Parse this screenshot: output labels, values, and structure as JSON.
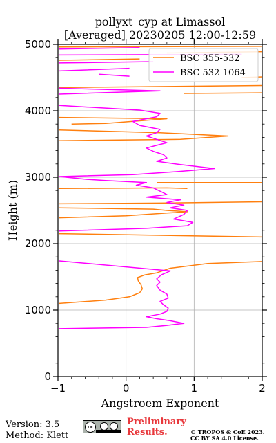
{
  "title_line1": "pollyxt_cyp at Limassol",
  "title_line2": "[Averaged] 20230205 12:00-12:59",
  "footer": {
    "version": "Version: 3.5",
    "method": "Method: Klett",
    "preliminary": "Preliminary",
    "results": "Results.",
    "credit_line1": "© TROPOS & CoE 2023.",
    "credit_line2": "CC BY SA 4.0 License.",
    "license_badge": "cc"
  },
  "chart_data": {
    "type": "line",
    "xlabel": "Angstroem Exponent",
    "ylabel": "Height (m)",
    "xlim": [
      -1,
      2
    ],
    "ylim": [
      0,
      5000
    ],
    "xticks": [
      -1,
      0,
      1,
      2
    ],
    "yticks": [
      0,
      1000,
      2000,
      3000,
      4000,
      5000
    ],
    "grid": true,
    "legend_position": "top-right",
    "series": [
      {
        "name": "BSC 355-532",
        "color": "#ff7f0e",
        "points": [
          [
            -0.98,
            1100
          ],
          [
            -0.3,
            1150
          ],
          [
            0.05,
            1200
          ],
          [
            0.2,
            1260
          ],
          [
            0.24,
            1320
          ],
          [
            0.22,
            1380
          ],
          [
            0.18,
            1440
          ],
          [
            0.17,
            1490
          ],
          [
            0.28,
            1530
          ],
          [
            0.45,
            1560
          ],
          [
            0.65,
            1630
          ],
          [
            1.2,
            1700
          ],
          [
            2.0,
            1730
          ],
          [
            null,
            null
          ],
          [
            -0.98,
            2150
          ],
          [
            2.0,
            2100
          ],
          [
            null,
            null
          ],
          [
            -0.98,
            2390
          ],
          [
            0.0,
            2420
          ],
          [
            0.6,
            2460
          ],
          [
            0.9,
            2480
          ],
          [
            0.6,
            2500
          ],
          [
            0.4,
            2520
          ],
          [
            -0.98,
            2540
          ],
          [
            null,
            null
          ],
          [
            -0.98,
            2600
          ],
          [
            0.5,
            2610
          ],
          [
            2.0,
            2630
          ],
          [
            null,
            null
          ],
          [
            -0.98,
            2830
          ],
          [
            0.6,
            2840
          ],
          [
            0.9,
            2830
          ],
          [
            null,
            null
          ],
          [
            0.45,
            2920
          ],
          [
            2.0,
            2920
          ],
          [
            null,
            null
          ],
          [
            -0.98,
            3550
          ],
          [
            0.8,
            3570
          ],
          [
            1.5,
            3620
          ],
          [
            0.5,
            3670
          ],
          [
            -0.98,
            3710
          ],
          [
            null,
            null
          ],
          [
            -0.8,
            3800
          ],
          [
            -0.3,
            3810
          ],
          [
            0.6,
            3880
          ],
          [
            -0.98,
            3900
          ],
          [
            null,
            null
          ],
          [
            0.85,
            4260
          ],
          [
            2.0,
            4270
          ],
          [
            null,
            null
          ],
          [
            -0.98,
            4350
          ],
          [
            2.0,
            4380
          ],
          [
            null,
            null
          ],
          [
            1.7,
            4500
          ],
          [
            2.0,
            4510
          ],
          [
            null,
            null
          ],
          [
            -0.98,
            4760
          ],
          [
            0.2,
            4780
          ],
          [
            null,
            null
          ],
          [
            0.6,
            4870
          ],
          [
            2.0,
            4890
          ],
          [
            null,
            null
          ],
          [
            -0.98,
            4960
          ],
          [
            2.0,
            4970
          ]
        ]
      },
      {
        "name": "BSC 532-1064",
        "color": "#ff00ff",
        "points": [
          [
            -0.98,
            720
          ],
          [
            0.3,
            740
          ],
          [
            0.6,
            770
          ],
          [
            0.85,
            800
          ],
          [
            0.65,
            840
          ],
          [
            0.45,
            870
          ],
          [
            0.3,
            900
          ],
          [
            0.5,
            940
          ],
          [
            0.6,
            980
          ],
          [
            0.62,
            1030
          ],
          [
            0.55,
            1080
          ],
          [
            0.5,
            1130
          ],
          [
            0.62,
            1180
          ],
          [
            0.6,
            1240
          ],
          [
            0.5,
            1300
          ],
          [
            0.45,
            1370
          ],
          [
            0.5,
            1420
          ],
          [
            0.45,
            1470
          ],
          [
            0.52,
            1530
          ],
          [
            0.65,
            1590
          ],
          [
            -0.98,
            1740
          ],
          [
            null,
            null
          ],
          [
            -0.98,
            2190
          ],
          [
            0.3,
            2230
          ],
          [
            0.9,
            2270
          ],
          [
            0.98,
            2320
          ],
          [
            0.7,
            2370
          ],
          [
            0.85,
            2440
          ],
          [
            0.9,
            2500
          ],
          [
            0.65,
            2540
          ],
          [
            0.85,
            2580
          ],
          [
            0.6,
            2620
          ],
          [
            0.8,
            2660
          ],
          [
            0.3,
            2700
          ],
          [
            0.6,
            2740
          ],
          [
            0.5,
            2790
          ],
          [
            0.4,
            2840
          ],
          [
            0.15,
            2880
          ],
          [
            0.3,
            2920
          ],
          [
            -0.3,
            2950
          ],
          [
            -0.6,
            2970
          ],
          [
            -0.98,
            3010
          ],
          [
            0.1,
            3040
          ],
          [
            0.7,
            3080
          ],
          [
            1.3,
            3130
          ],
          [
            0.8,
            3190
          ],
          [
            0.45,
            3240
          ],
          [
            0.6,
            3290
          ],
          [
            0.55,
            3340
          ],
          [
            0.4,
            3390
          ],
          [
            0.3,
            3440
          ],
          [
            0.45,
            3480
          ],
          [
            0.6,
            3520
          ],
          [
            0.45,
            3570
          ],
          [
            0.3,
            3620
          ],
          [
            0.45,
            3670
          ],
          [
            0.5,
            3720
          ],
          [
            0.2,
            3780
          ],
          [
            0.1,
            3840
          ],
          [
            0.45,
            3910
          ],
          [
            0.5,
            3960
          ],
          [
            0.2,
            4010
          ],
          [
            -0.98,
            4080
          ],
          [
            null,
            null
          ],
          [
            -0.98,
            4250
          ],
          [
            0.5,
            4300
          ],
          [
            -0.98,
            4340
          ],
          [
            null,
            null
          ],
          [
            0.05,
            4520
          ],
          [
            -0.4,
            4550
          ],
          [
            null,
            null
          ],
          [
            -0.98,
            4600
          ],
          [
            0.05,
            4640
          ],
          [
            null,
            null
          ],
          [
            -0.98,
            4720
          ],
          [
            0.4,
            4740
          ],
          [
            null,
            null
          ],
          [
            -0.98,
            4840
          ],
          [
            1.7,
            4850
          ],
          [
            null,
            null
          ],
          [
            -0.98,
            4930
          ],
          [
            0.2,
            4950
          ]
        ]
      }
    ]
  }
}
